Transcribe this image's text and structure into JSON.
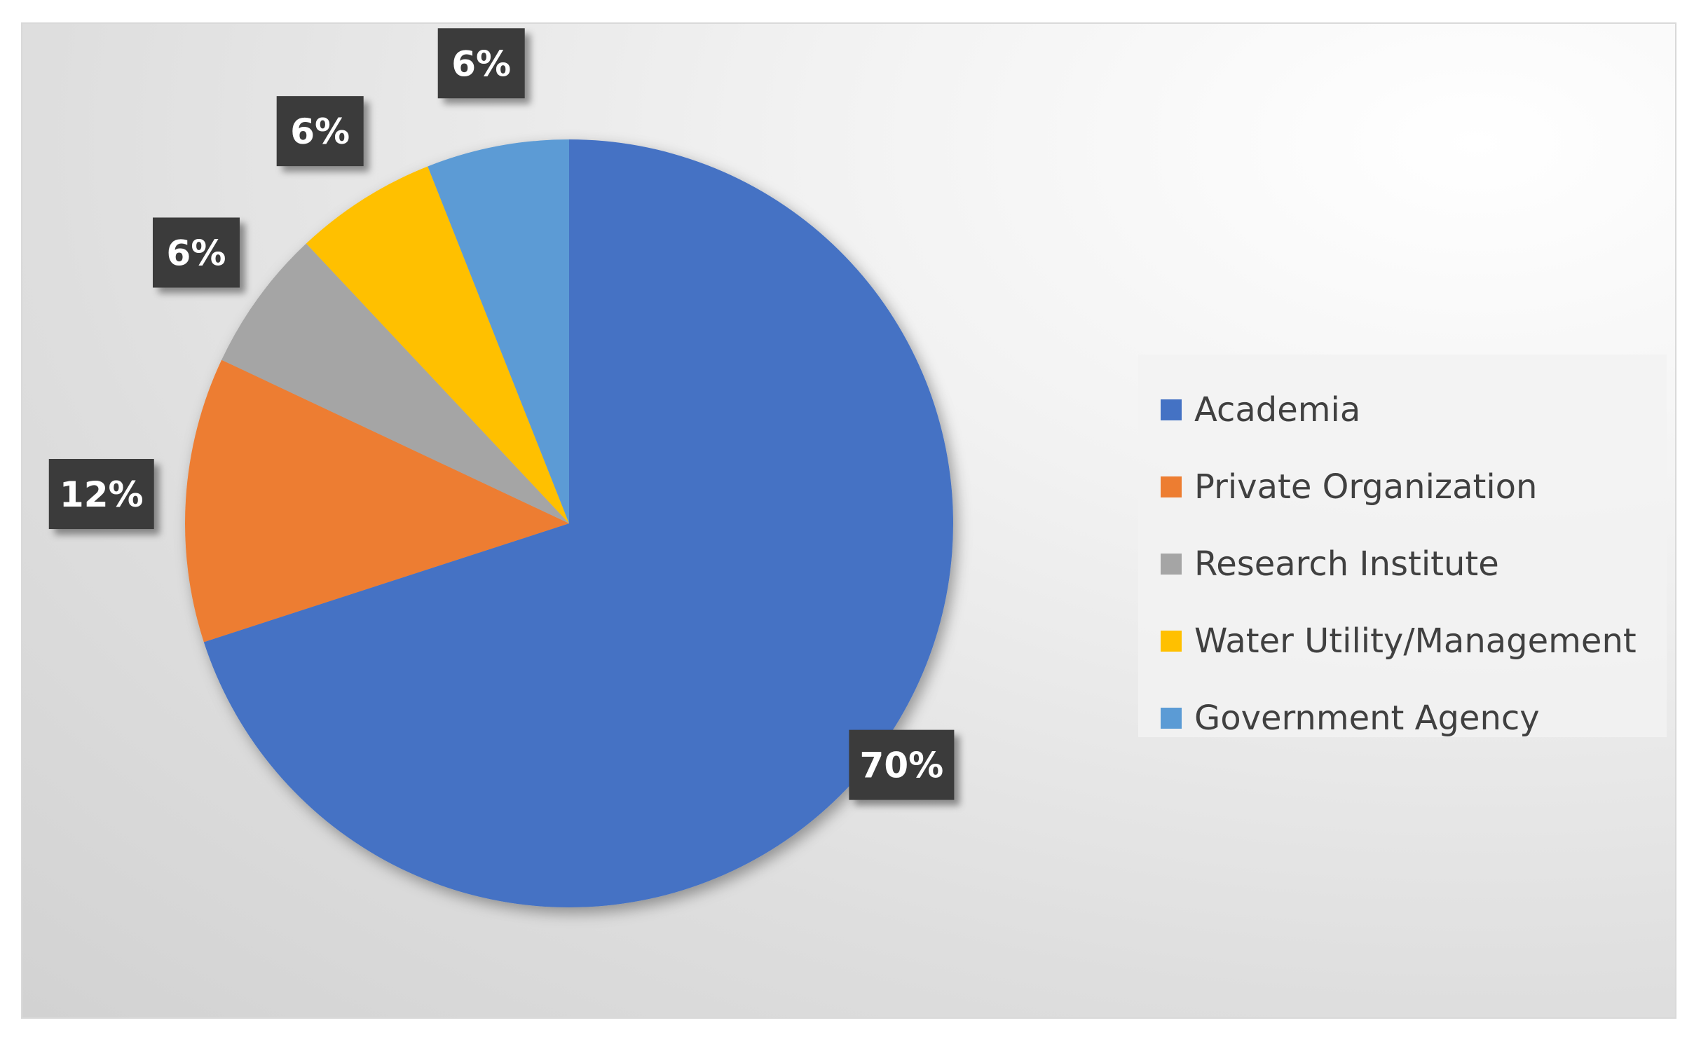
{
  "chart_data": {
    "type": "pie",
    "categories": [
      "Academia",
      "Private Organization",
      "Research Institute",
      "Water Utility/Management",
      "Government Agency"
    ],
    "values": [
      70,
      12,
      6,
      6,
      6
    ],
    "data_labels": [
      "70%",
      "12%",
      "6%",
      "6%",
      "6%"
    ],
    "colors": [
      "#4472C4",
      "#ED7D31",
      "#A5A5A5",
      "#FFC000",
      "#5B9BD5"
    ],
    "start_angle": "12 o'clock",
    "direction": "clockwise",
    "legend_position": "right",
    "title": ""
  },
  "legend": {
    "items": [
      {
        "label": "Academia",
        "color": "#4472C4"
      },
      {
        "label": "Private Organization",
        "color": "#ED7D31"
      },
      {
        "label": "Research Institute",
        "color": "#A5A5A5"
      },
      {
        "label": "Water Utility/Management",
        "color": "#FFC000"
      },
      {
        "label": "Government Agency",
        "color": "#5B9BD5"
      }
    ]
  }
}
